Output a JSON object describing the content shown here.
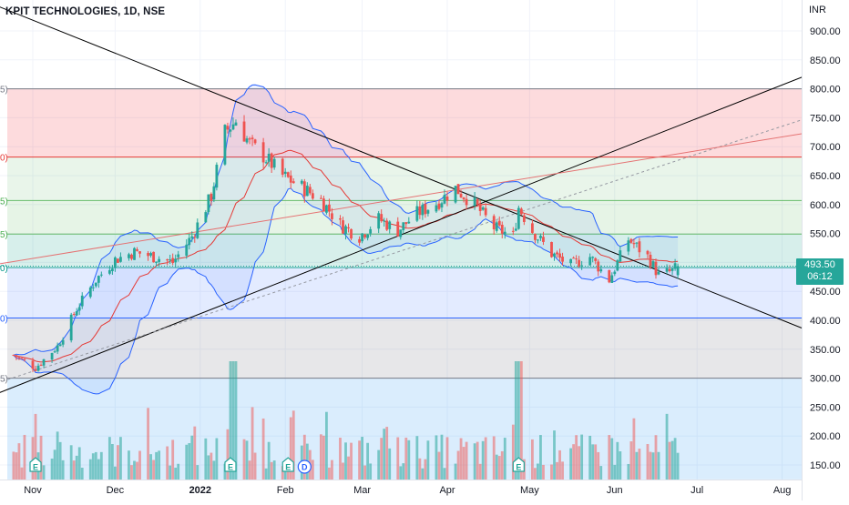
{
  "title": "KPIT TECHNOLOGIES, 1D, NSE",
  "currency": "INR",
  "last_price": "493.50",
  "countdown": "06:12",
  "colors": {
    "up": "#26a69a",
    "down": "#ef5350",
    "bollinger": "#2962ff",
    "ma": "#e53935",
    "trendline": "#000000"
  },
  "fib_levels": [
    {
      "label": "5)",
      "color": "#787b86"
    },
    {
      "label": "0)",
      "color": "#e53935"
    },
    {
      "label": "5)",
      "color": "#4caf50"
    },
    {
      "label": "5)",
      "color": "#4caf50"
    },
    {
      "label": "0)",
      "color": "#009688"
    },
    {
      "label": "0)",
      "color": "#2962ff"
    },
    {
      "label": "5)",
      "color": "#787b86"
    }
  ],
  "events": [
    {
      "label": "E"
    },
    {
      "label": "E"
    },
    {
      "label": "E"
    },
    {
      "label": "D"
    },
    {
      "label": "E"
    }
  ],
  "chart_data": {
    "type": "candlestick",
    "title": "KPIT TECHNOLOGIES, 1D, NSE",
    "y_axis": {
      "unit": "INR",
      "ticks": [
        "900.00",
        "850.00",
        "800.00",
        "750.00",
        "700.00",
        "650.00",
        "600.00",
        "550.00",
        "500.00",
        "450.00",
        "400.00",
        "350.00",
        "300.00",
        "250.00",
        "200.00",
        "150.00"
      ],
      "range": [
        135,
        925
      ]
    },
    "x_axis": {
      "ticks": [
        "Nov",
        "Dec",
        "2022",
        "Feb",
        "Mar",
        "Apr",
        "May",
        "Jun",
        "Jul",
        "Aug"
      ],
      "bold_ticks": [
        "2022"
      ],
      "range": [
        "2021-10-25",
        "2022-08-13"
      ]
    },
    "closes": [
      {
        "date": "2021-10-25",
        "close": 340
      },
      {
        "date": "2021-11-02",
        "close": 318
      },
      {
        "date": "2021-11-10",
        "close": 355
      },
      {
        "date": "2021-11-17",
        "close": 420
      },
      {
        "date": "2021-11-24",
        "close": 470
      },
      {
        "date": "2021-12-01",
        "close": 505
      },
      {
        "date": "2021-12-08",
        "close": 518
      },
      {
        "date": "2021-12-15",
        "close": 510
      },
      {
        "date": "2021-12-22",
        "close": 500
      },
      {
        "date": "2021-12-29",
        "close": 545
      },
      {
        "date": "2022-01-05",
        "close": 615
      },
      {
        "date": "2022-01-10",
        "close": 725
      },
      {
        "date": "2022-01-14",
        "close": 745
      },
      {
        "date": "2022-01-19",
        "close": 705
      },
      {
        "date": "2022-01-25",
        "close": 680
      },
      {
        "date": "2022-01-31",
        "close": 650
      },
      {
        "date": "2022-02-07",
        "close": 630
      },
      {
        "date": "2022-02-14",
        "close": 608
      },
      {
        "date": "2022-02-21",
        "close": 565
      },
      {
        "date": "2022-02-28",
        "close": 545
      },
      {
        "date": "2022-03-07",
        "close": 575
      },
      {
        "date": "2022-03-14",
        "close": 555
      },
      {
        "date": "2022-03-21",
        "close": 585
      },
      {
        "date": "2022-03-28",
        "close": 602
      },
      {
        "date": "2022-04-04",
        "close": 628
      },
      {
        "date": "2022-04-11",
        "close": 600
      },
      {
        "date": "2022-04-18",
        "close": 560
      },
      {
        "date": "2022-04-25",
        "close": 545
      },
      {
        "date": "2022-04-27",
        "close": 595
      },
      {
        "date": "2022-05-02",
        "close": 555
      },
      {
        "date": "2022-05-09",
        "close": 515
      },
      {
        "date": "2022-05-16",
        "close": 495
      },
      {
        "date": "2022-05-23",
        "close": 510
      },
      {
        "date": "2022-05-30",
        "close": 470
      },
      {
        "date": "2022-06-06",
        "close": 540
      },
      {
        "date": "2022-06-13",
        "close": 510
      },
      {
        "date": "2022-06-17",
        "close": 478
      },
      {
        "date": "2022-06-22",
        "close": 485
      },
      {
        "date": "2022-06-24",
        "close": 493.5
      }
    ],
    "volume_spikes": [
      "2022-01-13",
      "2022-04-27"
    ],
    "indicators": [
      "Bollinger Bands",
      "Moving Average",
      "Fibonacci Retracement",
      "Trendlines"
    ],
    "grid": true,
    "legend": "none"
  }
}
